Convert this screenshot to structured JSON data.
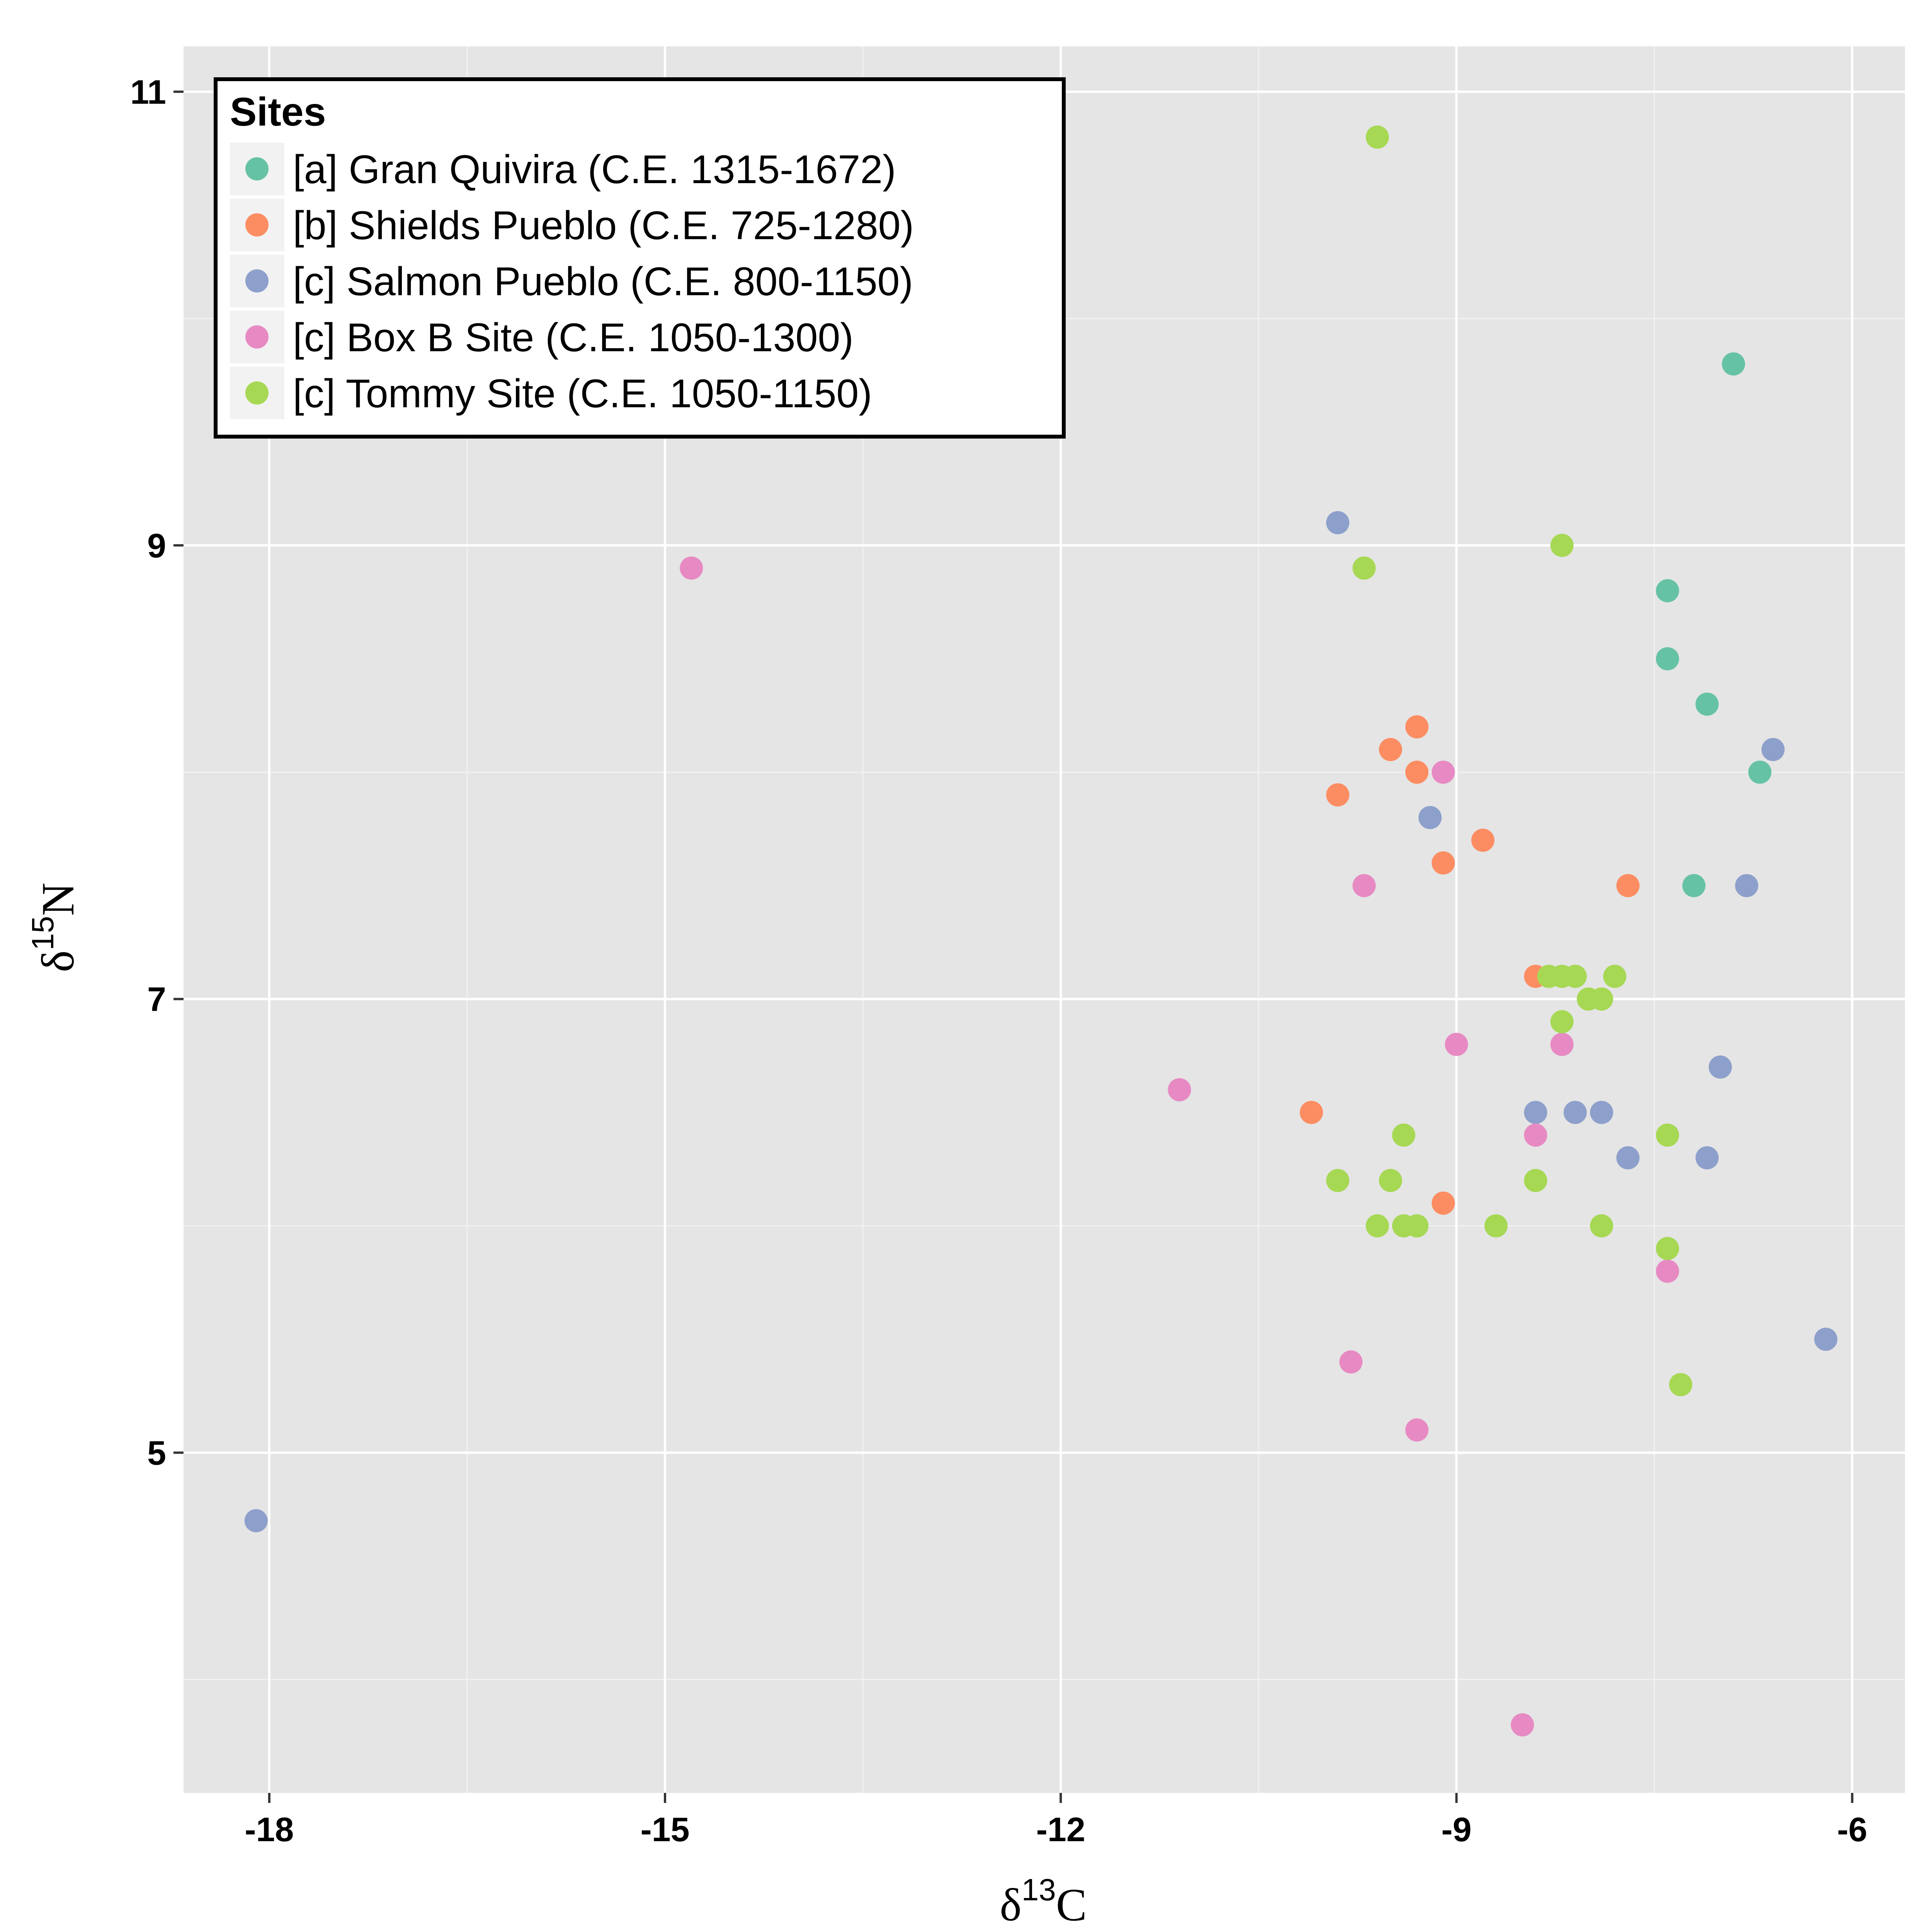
{
  "chart_data": {
    "type": "scatter",
    "xlabel": {
      "symbol": "δ",
      "sup": "13",
      "main": "C"
    },
    "ylabel": {
      "symbol": "δ",
      "sup": "15",
      "main": "N"
    },
    "xlim": [
      -18.65,
      -5.6
    ],
    "ylim": [
      3.5,
      11.2
    ],
    "x_major_ticks": [
      -18,
      -15,
      -12,
      -9,
      -6
    ],
    "x_tick_labels": [
      "-18",
      "-15",
      "-12",
      "-9",
      "-6"
    ],
    "x_minor_ticks": [
      -16.5,
      -13.5,
      -10.5,
      -7.5
    ],
    "y_major_ticks": [
      5,
      7,
      9,
      11
    ],
    "y_tick_labels": [
      "5",
      "7",
      "9",
      "11"
    ],
    "y_minor_ticks": [
      4,
      6,
      8,
      10
    ],
    "grid": true,
    "legend": {
      "title": "Sites",
      "placement": "top-left"
    },
    "series": [
      {
        "name": "[a] Gran Quivira (C.E. 1315-1672)",
        "color": "#66C2A5",
        "points": [
          [
            -6.9,
            9.8
          ],
          [
            -7.4,
            8.8
          ],
          [
            -7.4,
            8.5
          ],
          [
            -7.1,
            8.3
          ],
          [
            -6.7,
            8.0
          ],
          [
            -7.2,
            7.5
          ]
        ]
      },
      {
        "name": "[b] Shields Pueblo (C.E. 725-1280)",
        "color": "#FC8D62",
        "points": [
          [
            -9.3,
            8.2
          ],
          [
            -9.5,
            8.1
          ],
          [
            -9.3,
            8.0
          ],
          [
            -9.9,
            7.9
          ],
          [
            -8.8,
            7.7
          ],
          [
            -9.1,
            7.6
          ],
          [
            -7.7,
            7.5
          ],
          [
            -8.4,
            7.1
          ],
          [
            -10.1,
            6.5
          ],
          [
            -9.1,
            6.1
          ]
        ]
      },
      {
        "name": "[c] Salmon Pueblo (C.E. 800-1150)",
        "color": "#8DA0CB",
        "points": [
          [
            -9.9,
            9.1
          ],
          [
            -6.6,
            8.1
          ],
          [
            -9.2,
            7.8
          ],
          [
            -6.8,
            7.5
          ],
          [
            -7.0,
            6.7
          ],
          [
            -8.4,
            6.5
          ],
          [
            -8.1,
            6.5
          ],
          [
            -7.9,
            6.5
          ],
          [
            -7.7,
            6.3
          ],
          [
            -7.1,
            6.3
          ],
          [
            -6.2,
            5.5
          ],
          [
            -18.1,
            4.7
          ]
        ]
      },
      {
        "name": "[c] Box B Site (C.E. 1050-1300)",
        "color": "#E78AC3",
        "points": [
          [
            -14.8,
            8.9
          ],
          [
            -9.1,
            8.0
          ],
          [
            -9.7,
            7.5
          ],
          [
            -9.0,
            6.8
          ],
          [
            -8.2,
            6.8
          ],
          [
            -11.1,
            6.6
          ],
          [
            -8.4,
            6.4
          ],
          [
            -7.4,
            5.8
          ],
          [
            -9.8,
            5.4
          ],
          [
            -9.3,
            5.1
          ],
          [
            -8.5,
            3.8
          ]
        ]
      },
      {
        "name": "[c] Tommy Site (C.E. 1050-1150)",
        "color": "#A6D854",
        "points": [
          [
            -9.6,
            10.8
          ],
          [
            -8.2,
            9.0
          ],
          [
            -9.7,
            8.9
          ],
          [
            -8.3,
            7.1
          ],
          [
            -8.2,
            7.1
          ],
          [
            -8.1,
            7.1
          ],
          [
            -7.8,
            7.1
          ],
          [
            -8.0,
            7.0
          ],
          [
            -7.9,
            7.0
          ],
          [
            -8.2,
            6.9
          ],
          [
            -9.4,
            6.4
          ],
          [
            -7.4,
            6.4
          ],
          [
            -9.9,
            6.2
          ],
          [
            -9.5,
            6.2
          ],
          [
            -8.4,
            6.2
          ],
          [
            -9.6,
            6.0
          ],
          [
            -9.4,
            6.0
          ],
          [
            -9.3,
            6.0
          ],
          [
            -8.7,
            6.0
          ],
          [
            -7.9,
            6.0
          ],
          [
            -7.4,
            5.9
          ],
          [
            -7.3,
            5.3
          ]
        ]
      }
    ]
  }
}
